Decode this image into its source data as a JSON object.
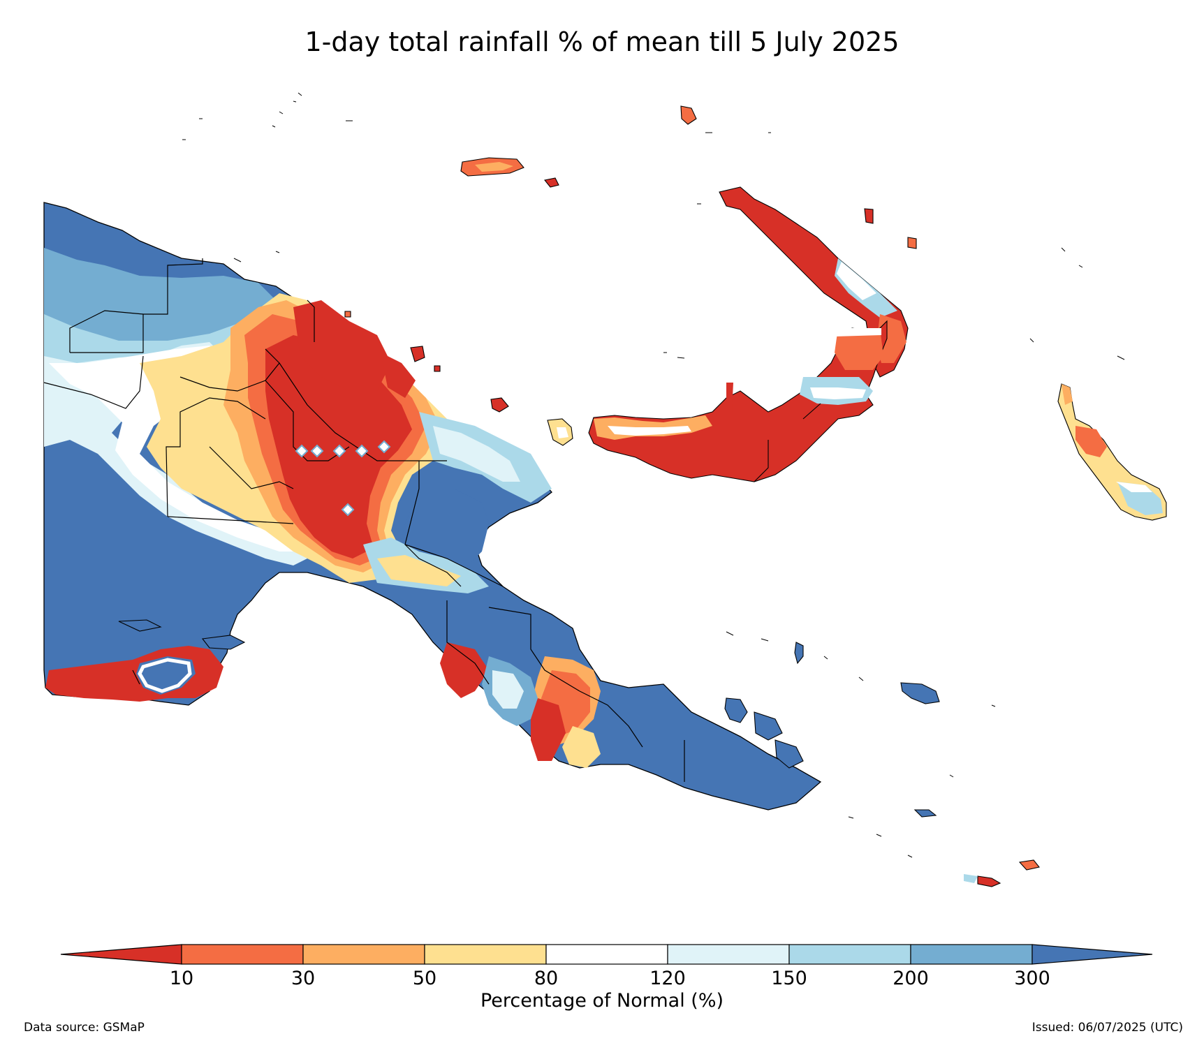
{
  "title": "1-day total rainfall % of mean till 5 July 2025",
  "colorbar": {
    "title": "Percentage of Normal (%)",
    "ticks": [
      "10",
      "30",
      "50",
      "80",
      "120",
      "150",
      "200",
      "300"
    ],
    "colors": [
      "#d73027",
      "#f46d43",
      "#fdae61",
      "#fee090",
      "#ffffff",
      "#e0f3f8",
      "#abd9e9",
      "#74add1",
      "#4575b4"
    ]
  },
  "footer": {
    "source": "Data source: GSMaP",
    "issued": "Issued: 06/07/2025 (UTC)"
  }
}
